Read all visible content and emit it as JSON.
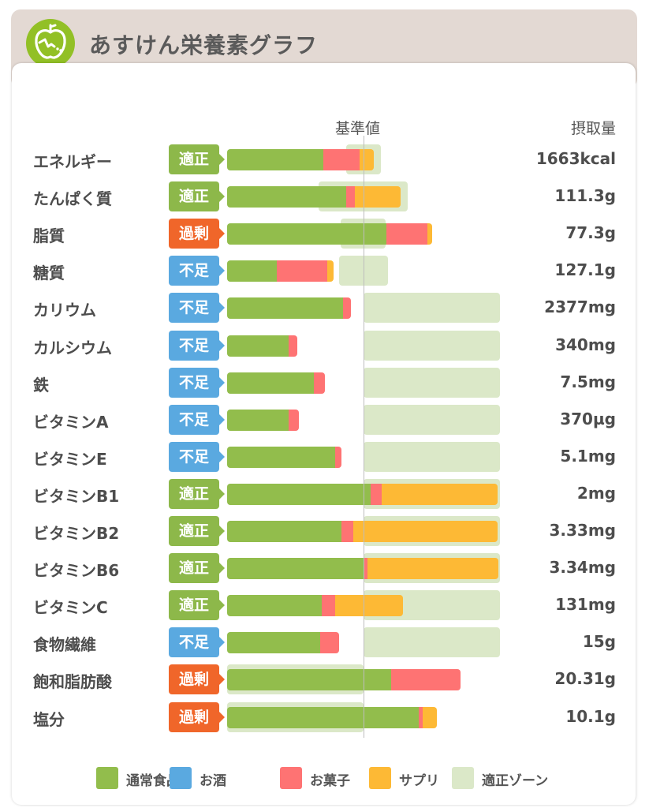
{
  "header": {
    "title": "あすけん栄養素グラフ",
    "logo_icon": "apple-icon",
    "bg_color": "#e3d9d3",
    "logo_color": "#92c026"
  },
  "columns": {
    "reference": "基準値",
    "intake": "摂取量"
  },
  "colors": {
    "regular_food": "#92bd4c",
    "alcohol": "#5aa9e0",
    "snacks": "#fe7373",
    "supplements": "#fdb935",
    "zone": "#dbe8c8",
    "status_ok": "#8db84a",
    "status_excess": "#f0662a",
    "status_short": "#5aa9e0"
  },
  "chart_data": {
    "type": "bar",
    "stacked": true,
    "orientation": "horizontal",
    "value_unit": "% of reference value (基準値)",
    "reference_value": 100,
    "categories": [
      "エネルギー",
      "たんぱく質",
      "脂質",
      "糖質",
      "カリウム",
      "カルシウム",
      "鉄",
      "ビタミンA",
      "ビタミンE",
      "ビタミンB1",
      "ビタミンB2",
      "ビタミンB6",
      "ビタミンC",
      "食物繊維",
      "飽和脂肪酸",
      "塩分"
    ],
    "series": [
      {
        "name": "通常食品",
        "color_key": "regular_food",
        "values": [
          70.5,
          87.3,
          116.8,
          36.4,
          85.0,
          45.1,
          63.6,
          45.1,
          79.2,
          105.2,
          83.8,
          100.0,
          69.4,
          68.2,
          120.2,
          140.5
        ]
      },
      {
        "name": "お酒",
        "color_key": "alcohol",
        "values": [
          0,
          0,
          0,
          0,
          0,
          0,
          0,
          0,
          0,
          0,
          0,
          0,
          0,
          0,
          0,
          0
        ]
      },
      {
        "name": "お菓子",
        "color_key": "snacks",
        "values": [
          26.6,
          6.4,
          30.1,
          37.0,
          5.8,
          6.4,
          8.1,
          7.5,
          4.6,
          8.1,
          8.7,
          2.9,
          9.8,
          13.9,
          50.9,
          2.9
        ]
      },
      {
        "name": "サプリ",
        "color_key": "supplements",
        "values": [
          10.4,
          33.5,
          3.5,
          4.6,
          0,
          0,
          0,
          0,
          0,
          85.0,
          105.8,
          96.0,
          49.7,
          0,
          0,
          10.4
        ]
      }
    ],
    "zones": [
      [
        87.3,
        112.7
      ],
      [
        67.1,
        132.4
      ],
      [
        83.2,
        116.2
      ],
      [
        82.1,
        117.9
      ],
      [
        100,
        200
      ],
      [
        100,
        200
      ],
      [
        100,
        200
      ],
      [
        100,
        200
      ],
      [
        100,
        200
      ],
      [
        100,
        200
      ],
      [
        100,
        200
      ],
      [
        100,
        200
      ],
      [
        100,
        200
      ],
      [
        100,
        200
      ],
      [
        0,
        100
      ],
      [
        0,
        100
      ]
    ],
    "legend": [
      "通常食品",
      "お酒",
      "お菓子",
      "サプリ",
      "適正ゾーン"
    ],
    "legend_position": "bottom"
  },
  "rows": [
    {
      "name": "エネルギー",
      "status": "適正",
      "status_type": "ok",
      "intake": "1663kcal"
    },
    {
      "name": "たんぱく質",
      "status": "適正",
      "status_type": "ok",
      "intake": "111.3g"
    },
    {
      "name": "脂質",
      "status": "過剰",
      "status_type": "excess",
      "intake": "77.3g"
    },
    {
      "name": "糖質",
      "status": "不足",
      "status_type": "short",
      "intake": "127.1g"
    },
    {
      "name": "カリウム",
      "status": "不足",
      "status_type": "short",
      "intake": "2377mg"
    },
    {
      "name": "カルシウム",
      "status": "不足",
      "status_type": "short",
      "intake": "340mg"
    },
    {
      "name": "鉄",
      "status": "不足",
      "status_type": "short",
      "intake": "7.5mg"
    },
    {
      "name": "ビタミンA",
      "status": "不足",
      "status_type": "short",
      "intake": "370µg"
    },
    {
      "name": "ビタミンE",
      "status": "不足",
      "status_type": "short",
      "intake": "5.1mg"
    },
    {
      "name": "ビタミンB1",
      "status": "適正",
      "status_type": "ok",
      "intake": "2mg"
    },
    {
      "name": "ビタミンB2",
      "status": "適正",
      "status_type": "ok",
      "intake": "3.33mg"
    },
    {
      "name": "ビタミンB6",
      "status": "適正",
      "status_type": "ok",
      "intake": "3.34mg"
    },
    {
      "name": "ビタミンC",
      "status": "適正",
      "status_type": "ok",
      "intake": "131mg"
    },
    {
      "name": "食物繊維",
      "status": "不足",
      "status_type": "short",
      "intake": "15g"
    },
    {
      "name": "飽和脂肪酸",
      "status": "過剰",
      "status_type": "excess",
      "intake": "20.31g"
    },
    {
      "name": "塩分",
      "status": "過剰",
      "status_type": "excess",
      "intake": "10.1g"
    }
  ],
  "legend": [
    {
      "label": "通常食品",
      "color_key": "regular_food"
    },
    {
      "label": "お酒",
      "color_key": "alcohol"
    },
    {
      "label": "お菓子",
      "color_key": "snacks"
    },
    {
      "label": "サプリ",
      "color_key": "supplements"
    },
    {
      "label": "適正ゾーン",
      "color_key": "zone"
    }
  ]
}
